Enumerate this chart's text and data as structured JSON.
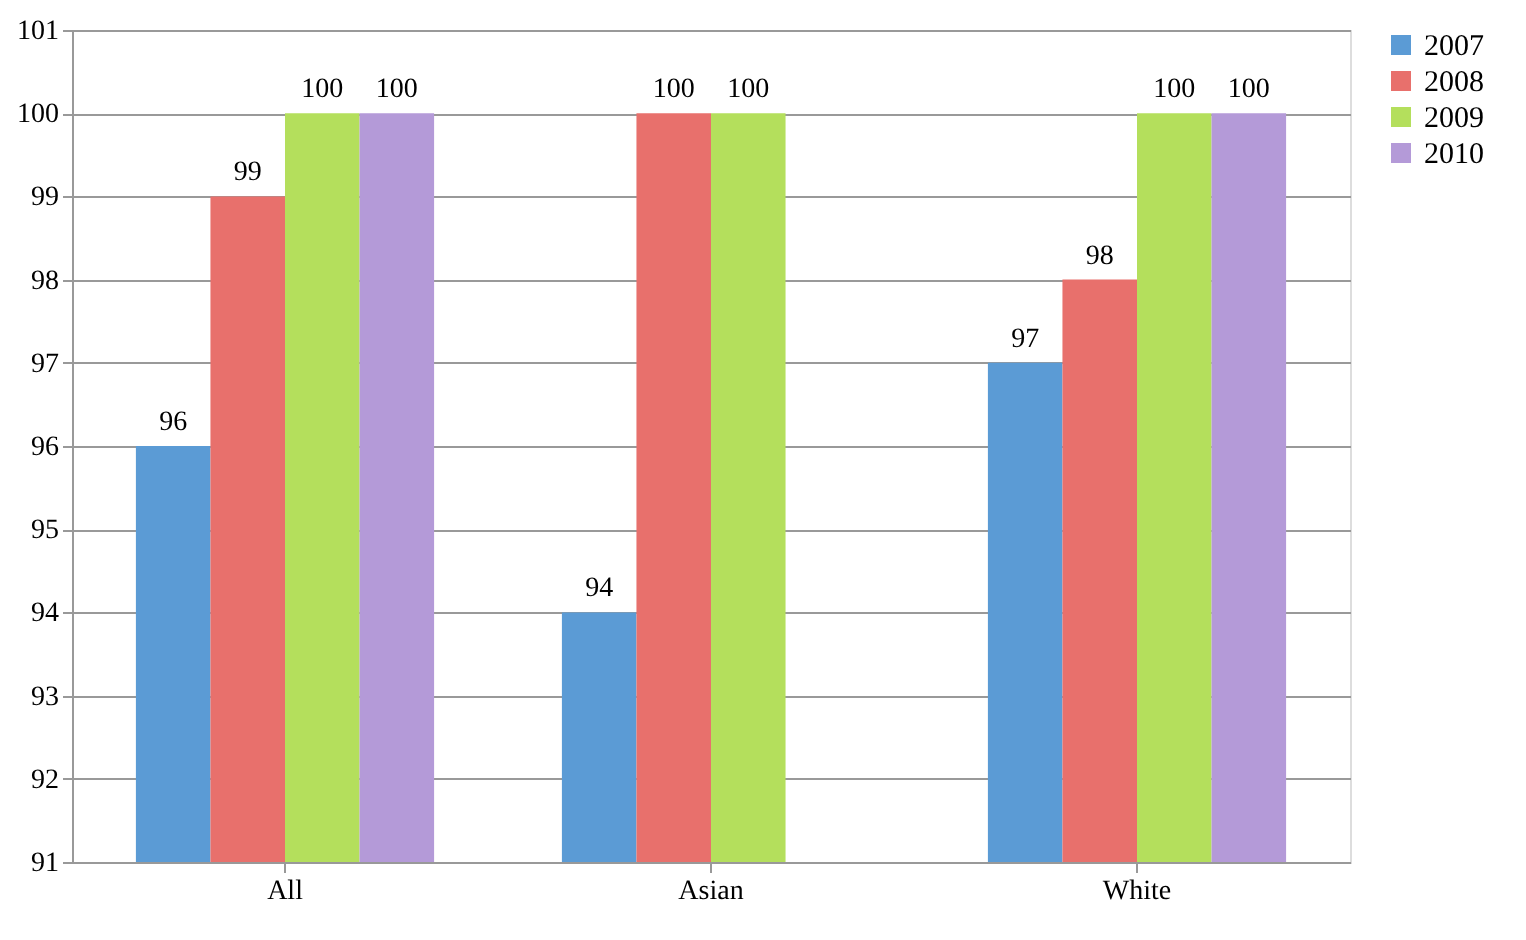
{
  "chart_data": {
    "type": "bar",
    "categories": [
      "All",
      "Asian",
      "White"
    ],
    "series": [
      {
        "name": "2007",
        "color": "#5b9bd5",
        "values": [
          96,
          94,
          97
        ]
      },
      {
        "name": "2008",
        "color": "#e8706c",
        "values": [
          99,
          100,
          98
        ]
      },
      {
        "name": "2009",
        "color": "#b4df5c",
        "values": [
          100,
          100,
          100
        ]
      },
      {
        "name": "2010",
        "color": "#b49ad8",
        "values": [
          100,
          null,
          100
        ]
      }
    ],
    "ylim": [
      91,
      101
    ],
    "yticks": [
      91,
      92,
      93,
      94,
      95,
      96,
      97,
      98,
      99,
      100,
      101
    ],
    "grid": "y",
    "legend": "right",
    "data_labels": true
  }
}
